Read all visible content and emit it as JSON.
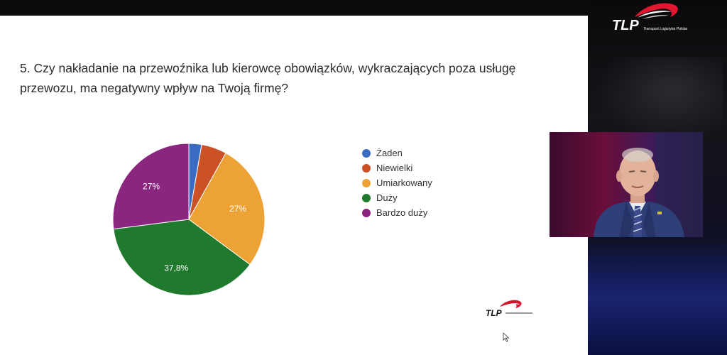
{
  "question": "5. Czy nakładanie na przewoźnika lub kierowcę obowiązków, wykraczających poza usługę przewozu, ma negatywny wpływ na Twoją firmę?",
  "logo": {
    "brand": "TLP",
    "tagline": "Transport Logistyka Polska"
  },
  "chart_data": {
    "type": "pie",
    "legend_position": "right",
    "start": "top",
    "direction": "clockwise",
    "slices": [
      {
        "label": "Żaden",
        "value": 2.7,
        "color": "#3b6cc4",
        "display": ""
      },
      {
        "label": "Niewielki",
        "value": 5.4,
        "color": "#cc5127",
        "display": ""
      },
      {
        "label": "Umiarkowany",
        "value": 27,
        "color": "#eda236",
        "display": "27%"
      },
      {
        "label": "Duży",
        "value": 37.8,
        "color": "#1f7a2e",
        "display": "37,8%"
      },
      {
        "label": "Bardzo duży",
        "value": 27,
        "color": "#8a2580",
        "display": "27%"
      }
    ]
  }
}
